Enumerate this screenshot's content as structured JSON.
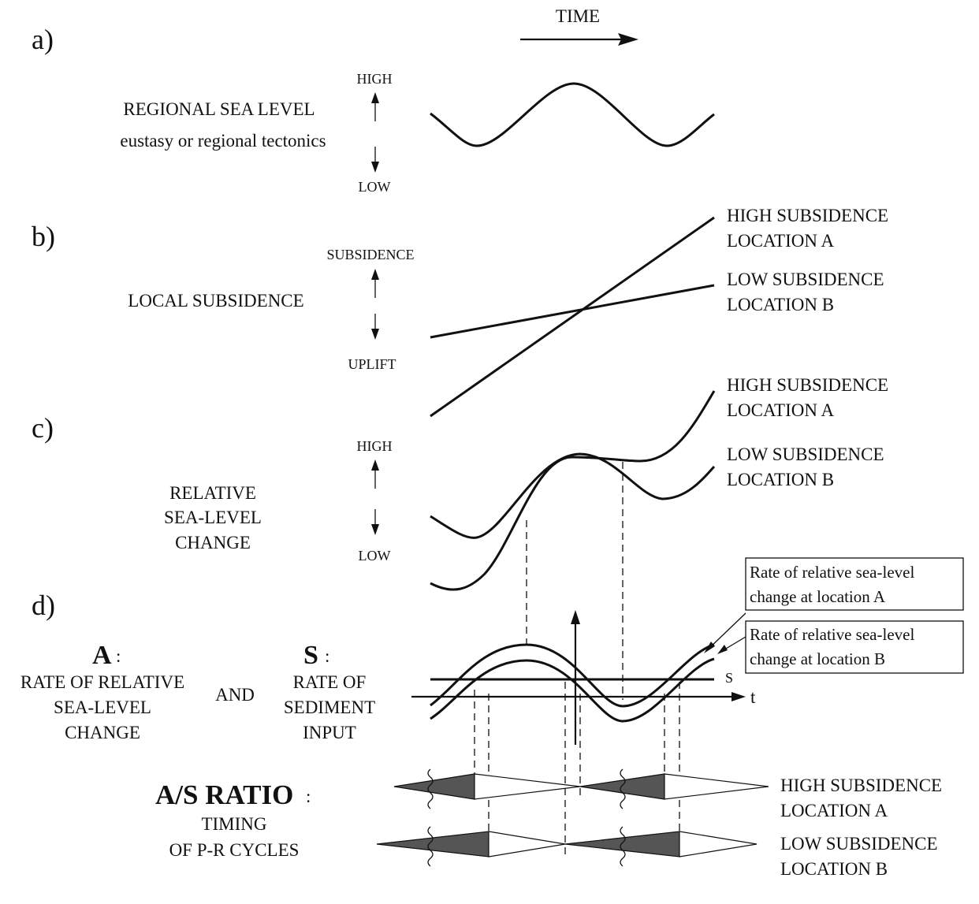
{
  "time_label": "TIME",
  "panel_a": {
    "letter": "a)",
    "axis_high": "HIGH",
    "axis_low": "LOW",
    "title": "REGIONAL SEA LEVEL",
    "subtitle": "eustasy or regional tectonics"
  },
  "panel_b": {
    "letter": "b)",
    "axis_top": "SUBSIDENCE",
    "axis_bottom": "UPLIFT",
    "title": "LOCAL SUBSIDENCE",
    "line_a_label_1": "HIGH SUBSIDENCE",
    "line_a_label_2": "LOCATION A",
    "line_b_label_1": "LOW SUBSIDENCE",
    "line_b_label_2": "LOCATION B"
  },
  "panel_c": {
    "letter": "c)",
    "axis_high": "HIGH",
    "axis_low": "LOW",
    "title_1": "RELATIVE",
    "title_2": "SEA-LEVEL",
    "title_3": "CHANGE",
    "curve_a_label_1": "HIGH SUBSIDENCE",
    "curve_a_label_2": "LOCATION A",
    "curve_b_label_1": "LOW SUBSIDENCE",
    "curve_b_label_2": "LOCATION B"
  },
  "panel_d": {
    "letter": "d)",
    "a_letter": "A",
    "a_colon": ":",
    "a_line_1": "RATE OF RELATIVE",
    "a_line_2": "SEA-LEVEL",
    "a_line_3": "CHANGE",
    "and": "AND",
    "s_letter": "S",
    "s_colon": ":",
    "s_line_1": "RATE OF",
    "s_line_2": "SEDIMENT",
    "s_line_3": "INPUT",
    "s_axis": "S",
    "t_axis": "t",
    "box_a_1": "Rate of relative sea-level",
    "box_a_2": "change at location A",
    "box_b_1": "Rate of relative sea-level",
    "box_b_2": "change at location B",
    "ratio_title": "A/S RATIO",
    "ratio_colon": ":",
    "ratio_sub_1": "TIMING",
    "ratio_sub_2": "OF P-R CYCLES",
    "row_a_label_1": "HIGH SUBSIDENCE",
    "row_a_label_2": "LOCATION A",
    "row_b_label_1": "LOW SUBSIDENCE",
    "row_b_label_2": "LOCATION B"
  }
}
